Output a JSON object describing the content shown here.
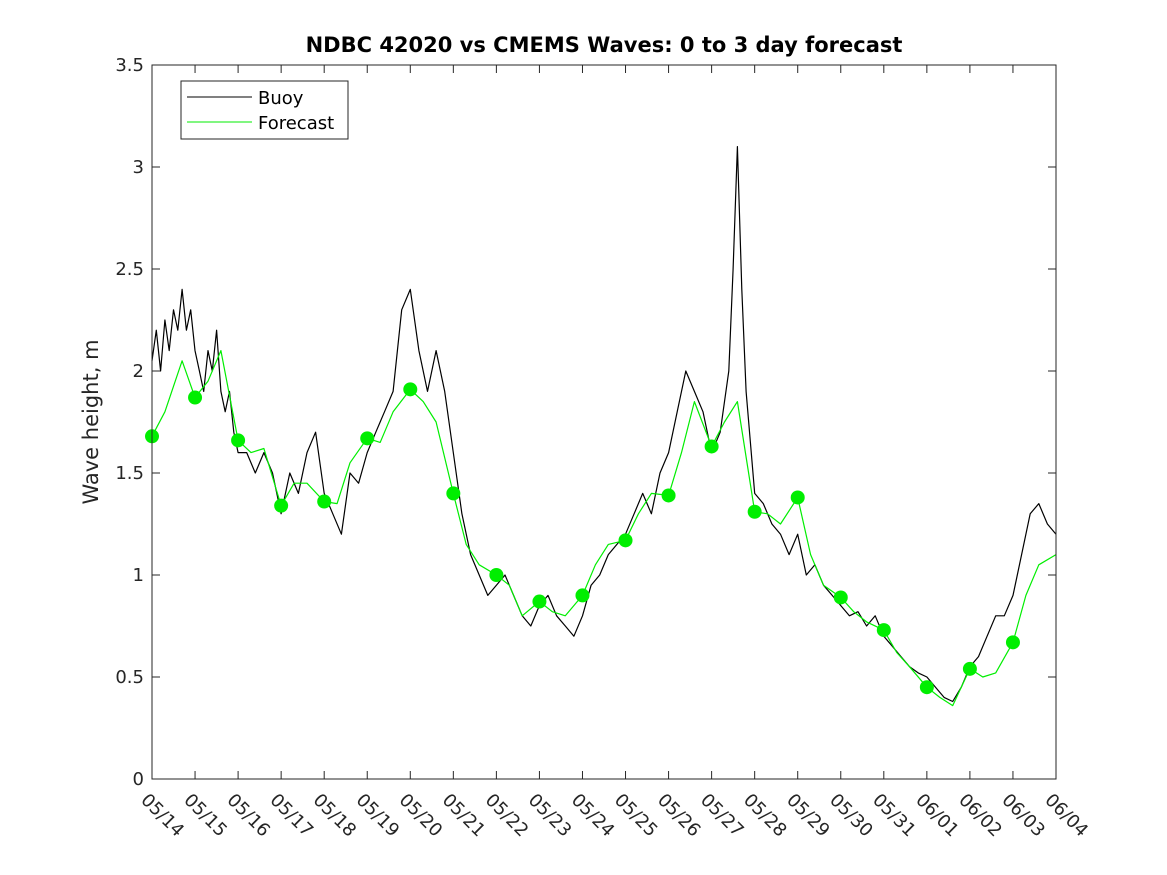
{
  "colors": {
    "buoy": "#000000",
    "forecast": "#00ee00",
    "axes": "#262626",
    "background": "#ffffff"
  },
  "chart_data": {
    "type": "line",
    "title": "NDBC 42020 vs CMEMS Waves: 0 to 3 day forecast",
    "xlabel": "",
    "ylabel": "Wave height, m",
    "x_unit": "days since 05/14",
    "xlim": [
      0,
      21
    ],
    "ylim": [
      0,
      3.5
    ],
    "yticks": [
      0,
      0.5,
      1,
      1.5,
      2,
      2.5,
      3,
      3.5
    ],
    "ytick_labels": [
      "0",
      "0.5",
      "1",
      "1.5",
      "2",
      "2.5",
      "3",
      "3.5"
    ],
    "xtick_labels": [
      "05/14",
      "05/15",
      "05/16",
      "05/17",
      "05/18",
      "05/19",
      "05/20",
      "05/21",
      "05/22",
      "05/23",
      "05/24",
      "05/25",
      "05/26",
      "05/27",
      "05/28",
      "05/29",
      "05/30",
      "05/31",
      "06/01",
      "06/02",
      "06/03",
      "06/04"
    ],
    "grid": false,
    "legend": {
      "placement": "top-left",
      "entries": [
        "Buoy",
        "Forecast"
      ]
    },
    "series": [
      {
        "name": "Buoy",
        "points": [
          [
            0,
            2.05
          ],
          [
            0.1,
            2.2
          ],
          [
            0.2,
            2.0
          ],
          [
            0.3,
            2.25
          ],
          [
            0.4,
            2.1
          ],
          [
            0.5,
            2.3
          ],
          [
            0.6,
            2.2
          ],
          [
            0.7,
            2.4
          ],
          [
            0.8,
            2.2
          ],
          [
            0.9,
            2.3
          ],
          [
            1.0,
            2.1
          ],
          [
            1.1,
            2.0
          ],
          [
            1.2,
            1.9
          ],
          [
            1.3,
            2.1
          ],
          [
            1.4,
            2.0
          ],
          [
            1.5,
            2.2
          ],
          [
            1.6,
            1.9
          ],
          [
            1.7,
            1.8
          ],
          [
            1.8,
            1.9
          ],
          [
            1.9,
            1.7
          ],
          [
            2.0,
            1.6
          ],
          [
            2.2,
            1.6
          ],
          [
            2.4,
            1.5
          ],
          [
            2.6,
            1.6
          ],
          [
            2.8,
            1.5
          ],
          [
            3.0,
            1.3
          ],
          [
            3.2,
            1.5
          ],
          [
            3.4,
            1.4
          ],
          [
            3.6,
            1.6
          ],
          [
            3.8,
            1.7
          ],
          [
            4.0,
            1.4
          ],
          [
            4.2,
            1.3
          ],
          [
            4.4,
            1.2
          ],
          [
            4.6,
            1.5
          ],
          [
            4.8,
            1.45
          ],
          [
            5.0,
            1.6
          ],
          [
            5.2,
            1.7
          ],
          [
            5.4,
            1.8
          ],
          [
            5.6,
            1.9
          ],
          [
            5.8,
            2.3
          ],
          [
            6.0,
            2.4
          ],
          [
            6.2,
            2.1
          ],
          [
            6.4,
            1.9
          ],
          [
            6.6,
            2.1
          ],
          [
            6.8,
            1.9
          ],
          [
            7.0,
            1.6
          ],
          [
            7.2,
            1.3
          ],
          [
            7.4,
            1.1
          ],
          [
            7.6,
            1.0
          ],
          [
            7.8,
            0.9
          ],
          [
            8.0,
            0.95
          ],
          [
            8.2,
            1.0
          ],
          [
            8.4,
            0.9
          ],
          [
            8.6,
            0.8
          ],
          [
            8.8,
            0.75
          ],
          [
            9.0,
            0.85
          ],
          [
            9.2,
            0.9
          ],
          [
            9.4,
            0.8
          ],
          [
            9.6,
            0.75
          ],
          [
            9.8,
            0.7
          ],
          [
            10.0,
            0.8
          ],
          [
            10.2,
            0.95
          ],
          [
            10.4,
            1.0
          ],
          [
            10.6,
            1.1
          ],
          [
            10.8,
            1.15
          ],
          [
            11.0,
            1.2
          ],
          [
            11.2,
            1.3
          ],
          [
            11.4,
            1.4
          ],
          [
            11.6,
            1.3
          ],
          [
            11.8,
            1.5
          ],
          [
            12.0,
            1.6
          ],
          [
            12.2,
            1.8
          ],
          [
            12.4,
            2.0
          ],
          [
            12.6,
            1.9
          ],
          [
            12.8,
            1.8
          ],
          [
            13.0,
            1.6
          ],
          [
            13.2,
            1.7
          ],
          [
            13.4,
            2.0
          ],
          [
            13.5,
            2.5
          ],
          [
            13.6,
            3.1
          ],
          [
            13.7,
            2.4
          ],
          [
            13.8,
            1.9
          ],
          [
            14.0,
            1.4
          ],
          [
            14.2,
            1.35
          ],
          [
            14.4,
            1.25
          ],
          [
            14.6,
            1.2
          ],
          [
            14.8,
            1.1
          ],
          [
            15.0,
            1.2
          ],
          [
            15.2,
            1.0
          ],
          [
            15.4,
            1.05
          ],
          [
            15.6,
            0.95
          ],
          [
            15.8,
            0.9
          ],
          [
            16.0,
            0.85
          ],
          [
            16.2,
            0.8
          ],
          [
            16.4,
            0.82
          ],
          [
            16.6,
            0.75
          ],
          [
            16.8,
            0.8
          ],
          [
            17.0,
            0.7
          ],
          [
            17.2,
            0.65
          ],
          [
            17.4,
            0.6
          ],
          [
            17.6,
            0.55
          ],
          [
            17.8,
            0.52
          ],
          [
            18.0,
            0.5
          ],
          [
            18.2,
            0.45
          ],
          [
            18.4,
            0.4
          ],
          [
            18.6,
            0.38
          ],
          [
            18.8,
            0.45
          ],
          [
            19.0,
            0.55
          ],
          [
            19.2,
            0.6
          ],
          [
            19.4,
            0.7
          ],
          [
            19.6,
            0.8
          ],
          [
            19.8,
            0.8
          ],
          [
            20.0,
            0.9
          ],
          [
            20.2,
            1.1
          ],
          [
            20.4,
            1.3
          ],
          [
            20.6,
            1.35
          ],
          [
            20.8,
            1.25
          ],
          [
            21.0,
            1.2
          ]
        ]
      },
      {
        "name": "Forecast",
        "points": [
          [
            0,
            1.68
          ],
          [
            0.3,
            1.8
          ],
          [
            0.7,
            2.05
          ],
          [
            1.0,
            1.87
          ],
          [
            1.3,
            1.95
          ],
          [
            1.6,
            2.1
          ],
          [
            2.0,
            1.66
          ],
          [
            2.3,
            1.6
          ],
          [
            2.6,
            1.62
          ],
          [
            3.0,
            1.34
          ],
          [
            3.3,
            1.45
          ],
          [
            3.6,
            1.45
          ],
          [
            4.0,
            1.36
          ],
          [
            4.3,
            1.35
          ],
          [
            4.6,
            1.55
          ],
          [
            5.0,
            1.67
          ],
          [
            5.3,
            1.65
          ],
          [
            5.6,
            1.8
          ],
          [
            6.0,
            1.91
          ],
          [
            6.3,
            1.85
          ],
          [
            6.6,
            1.75
          ],
          [
            7.0,
            1.4
          ],
          [
            7.3,
            1.15
          ],
          [
            7.6,
            1.05
          ],
          [
            8.0,
            1.0
          ],
          [
            8.3,
            0.95
          ],
          [
            8.6,
            0.8
          ],
          [
            9.0,
            0.87
          ],
          [
            9.3,
            0.82
          ],
          [
            9.6,
            0.8
          ],
          [
            10.0,
            0.9
          ],
          [
            10.3,
            1.05
          ],
          [
            10.6,
            1.15
          ],
          [
            11.0,
            1.17
          ],
          [
            11.3,
            1.3
          ],
          [
            11.6,
            1.4
          ],
          [
            12.0,
            1.39
          ],
          [
            12.3,
            1.6
          ],
          [
            12.6,
            1.85
          ],
          [
            13.0,
            1.63
          ],
          [
            13.3,
            1.75
          ],
          [
            13.6,
            1.85
          ],
          [
            14.0,
            1.31
          ],
          [
            14.3,
            1.3
          ],
          [
            14.6,
            1.25
          ],
          [
            15.0,
            1.38
          ],
          [
            15.3,
            1.1
          ],
          [
            15.6,
            0.95
          ],
          [
            16.0,
            0.89
          ],
          [
            16.3,
            0.82
          ],
          [
            16.6,
            0.77
          ],
          [
            17.0,
            0.73
          ],
          [
            17.3,
            0.62
          ],
          [
            17.6,
            0.55
          ],
          [
            18.0,
            0.45
          ],
          [
            18.3,
            0.4
          ],
          [
            18.6,
            0.36
          ],
          [
            19.0,
            0.54
          ],
          [
            19.3,
            0.5
          ],
          [
            19.6,
            0.52
          ],
          [
            20.0,
            0.67
          ],
          [
            20.3,
            0.9
          ],
          [
            20.6,
            1.05
          ],
          [
            21.0,
            1.1
          ]
        ]
      }
    ],
    "forecast_markers": [
      [
        0,
        1.68
      ],
      [
        1,
        1.87
      ],
      [
        2,
        1.66
      ],
      [
        3,
        1.34
      ],
      [
        4,
        1.36
      ],
      [
        5,
        1.67
      ],
      [
        6,
        1.91
      ],
      [
        7,
        1.4
      ],
      [
        8,
        1.0
      ],
      [
        9,
        0.87
      ],
      [
        10,
        0.9
      ],
      [
        11,
        1.17
      ],
      [
        12,
        1.39
      ],
      [
        13,
        1.63
      ],
      [
        14,
        1.31
      ],
      [
        15,
        1.38
      ],
      [
        16,
        0.89
      ],
      [
        17,
        0.73
      ],
      [
        18,
        0.45
      ],
      [
        19,
        0.54
      ],
      [
        20,
        0.67
      ]
    ]
  }
}
